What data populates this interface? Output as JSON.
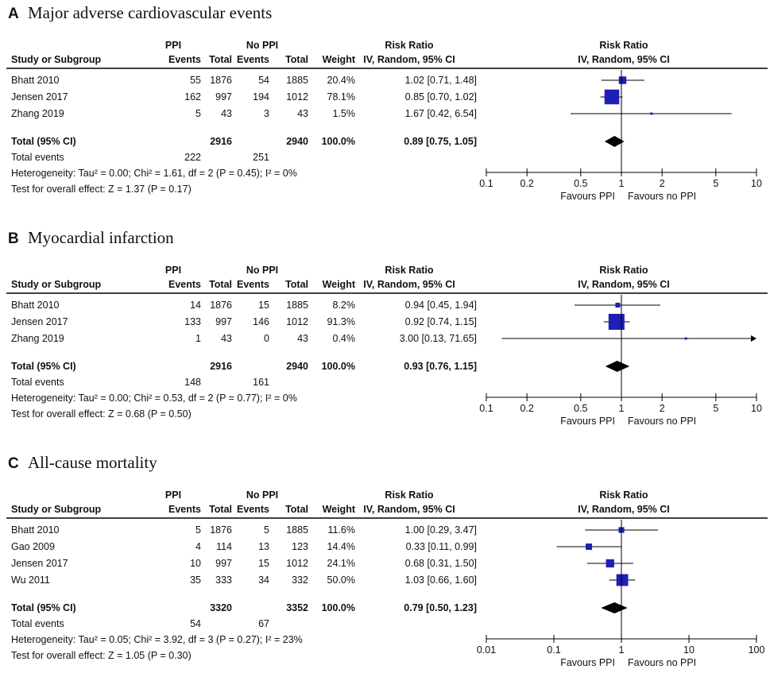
{
  "headers": {
    "study": "Study or Subgroup",
    "group1": "PPI",
    "group2": "No PPI",
    "events": "Events",
    "total": "Total",
    "weight": "Weight",
    "rr": "Risk Ratio",
    "method": "IV, Random, 95% CI",
    "plot_title": "Risk Ratio",
    "plot_method": "IV, Random, 95% CI",
    "total_ci": "Total (95% CI)",
    "total_events": "Total events",
    "favours_left": "Favours PPI",
    "favours_right": "Favours no PPI"
  },
  "colors": {
    "square": "#1f1fb3",
    "diamond": "#000000",
    "line": "#000000"
  },
  "chart_data": [
    {
      "type": "forest",
      "letter": "A",
      "title": "Major adverse cardiovascular events",
      "xscale": "log",
      "xlim": [
        0.1,
        10
      ],
      "ticks": [
        0.1,
        0.2,
        0.5,
        1,
        2,
        5,
        10
      ],
      "tick_labels": [
        "0.1",
        "0.2",
        "0.5",
        "1",
        "2",
        "5",
        "10"
      ],
      "studies": [
        {
          "name": "Bhatt 2010",
          "e1": "55",
          "n1": "1876",
          "e2": "54",
          "n2": "1885",
          "weight": "20.4%",
          "ci_text": "1.02 [0.71, 1.48]",
          "rr": 1.02,
          "lo": 0.71,
          "hi": 1.48,
          "w": 20.4
        },
        {
          "name": "Jensen 2017",
          "e1": "162",
          "n1": "997",
          "e2": "194",
          "n2": "1012",
          "weight": "78.1%",
          "ci_text": "0.85 [0.70, 1.02]",
          "rr": 0.85,
          "lo": 0.7,
          "hi": 1.02,
          "w": 78.1
        },
        {
          "name": "Zhang 2019",
          "e1": "5",
          "n1": "43",
          "e2": "3",
          "n2": "43",
          "weight": "1.5%",
          "ci_text": "1.67 [0.42, 6.54]",
          "rr": 1.67,
          "lo": 0.42,
          "hi": 6.54,
          "w": 1.5
        }
      ],
      "total": {
        "n1": "2916",
        "n2": "2940",
        "weight": "100.0%",
        "ci_text": "0.89 [0.75, 1.05]",
        "rr": 0.89,
        "lo": 0.75,
        "hi": 1.05
      },
      "events": {
        "e1": "222",
        "e2": "251"
      },
      "heterogeneity": "Heterogeneity: Tau² = 0.00; Chi² = 1.61, df = 2 (P = 0.45); I² = 0%",
      "overall": "Test for overall effect: Z = 1.37 (P = 0.17)"
    },
    {
      "type": "forest",
      "letter": "B",
      "title": "Myocardial infarction",
      "xscale": "log",
      "xlim": [
        0.1,
        10
      ],
      "ticks": [
        0.1,
        0.2,
        0.5,
        1,
        2,
        5,
        10
      ],
      "tick_labels": [
        "0.1",
        "0.2",
        "0.5",
        "1",
        "2",
        "5",
        "10"
      ],
      "studies": [
        {
          "name": "Bhatt 2010",
          "e1": "14",
          "n1": "1876",
          "e2": "15",
          "n2": "1885",
          "weight": "8.2%",
          "ci_text": "0.94 [0.45, 1.94]",
          "rr": 0.94,
          "lo": 0.45,
          "hi": 1.94,
          "w": 8.2
        },
        {
          "name": "Jensen 2017",
          "e1": "133",
          "n1": "997",
          "e2": "146",
          "n2": "1012",
          "weight": "91.3%",
          "ci_text": "0.92 [0.74, 1.15]",
          "rr": 0.92,
          "lo": 0.74,
          "hi": 1.15,
          "w": 91.3
        },
        {
          "name": "Zhang 2019",
          "e1": "1",
          "n1": "43",
          "e2": "0",
          "n2": "43",
          "weight": "0.4%",
          "ci_text": "3.00 [0.13, 71.65]",
          "rr": 3.0,
          "lo": 0.13,
          "hi": 71.65,
          "w": 0.4
        }
      ],
      "total": {
        "n1": "2916",
        "n2": "2940",
        "weight": "100.0%",
        "ci_text": "0.93 [0.76, 1.15]",
        "rr": 0.93,
        "lo": 0.76,
        "hi": 1.15
      },
      "events": {
        "e1": "148",
        "e2": "161"
      },
      "heterogeneity": "Heterogeneity: Tau² = 0.00; Chi² = 0.53, df = 2 (P = 0.77); I² = 0%",
      "overall": "Test for overall effect: Z = 0.68 (P = 0.50)"
    },
    {
      "type": "forest",
      "letter": "C",
      "title": "All-cause mortality",
      "xscale": "log",
      "xlim": [
        0.01,
        100
      ],
      "ticks": [
        0.01,
        0.1,
        1,
        10,
        100
      ],
      "tick_labels": [
        "0.01",
        "0.1",
        "1",
        "10",
        "100"
      ],
      "studies": [
        {
          "name": "Bhatt 2010",
          "e1": "5",
          "n1": "1876",
          "e2": "5",
          "n2": "1885",
          "weight": "11.6%",
          "ci_text": "1.00 [0.29, 3.47]",
          "rr": 1.0,
          "lo": 0.29,
          "hi": 3.47,
          "w": 11.6
        },
        {
          "name": "Gao 2009",
          "e1": "4",
          "n1": "114",
          "e2": "13",
          "n2": "123",
          "weight": "14.4%",
          "ci_text": "0.33 [0.11, 0.99]",
          "rr": 0.33,
          "lo": 0.11,
          "hi": 0.99,
          "w": 14.4
        },
        {
          "name": "Jensen 2017",
          "e1": "10",
          "n1": "997",
          "e2": "15",
          "n2": "1012",
          "weight": "24.1%",
          "ci_text": "0.68 [0.31, 1.50]",
          "rr": 0.68,
          "lo": 0.31,
          "hi": 1.5,
          "w": 24.1
        },
        {
          "name": "Wu 2011",
          "e1": "35",
          "n1": "333",
          "e2": "34",
          "n2": "332",
          "weight": "50.0%",
          "ci_text": "1.03 [0.66, 1.60]",
          "rr": 1.03,
          "lo": 0.66,
          "hi": 1.6,
          "w": 50.0
        }
      ],
      "total": {
        "n1": "3320",
        "n2": "3352",
        "weight": "100.0%",
        "ci_text": "0.79 [0.50, 1.23]",
        "rr": 0.79,
        "lo": 0.5,
        "hi": 1.23
      },
      "events": {
        "e1": "54",
        "e2": "67"
      },
      "heterogeneity": "Heterogeneity: Tau² = 0.05; Chi² = 3.92, df = 3 (P = 0.27); I² = 23%",
      "overall": "Test for overall effect: Z = 1.05 (P = 0.30)"
    }
  ]
}
